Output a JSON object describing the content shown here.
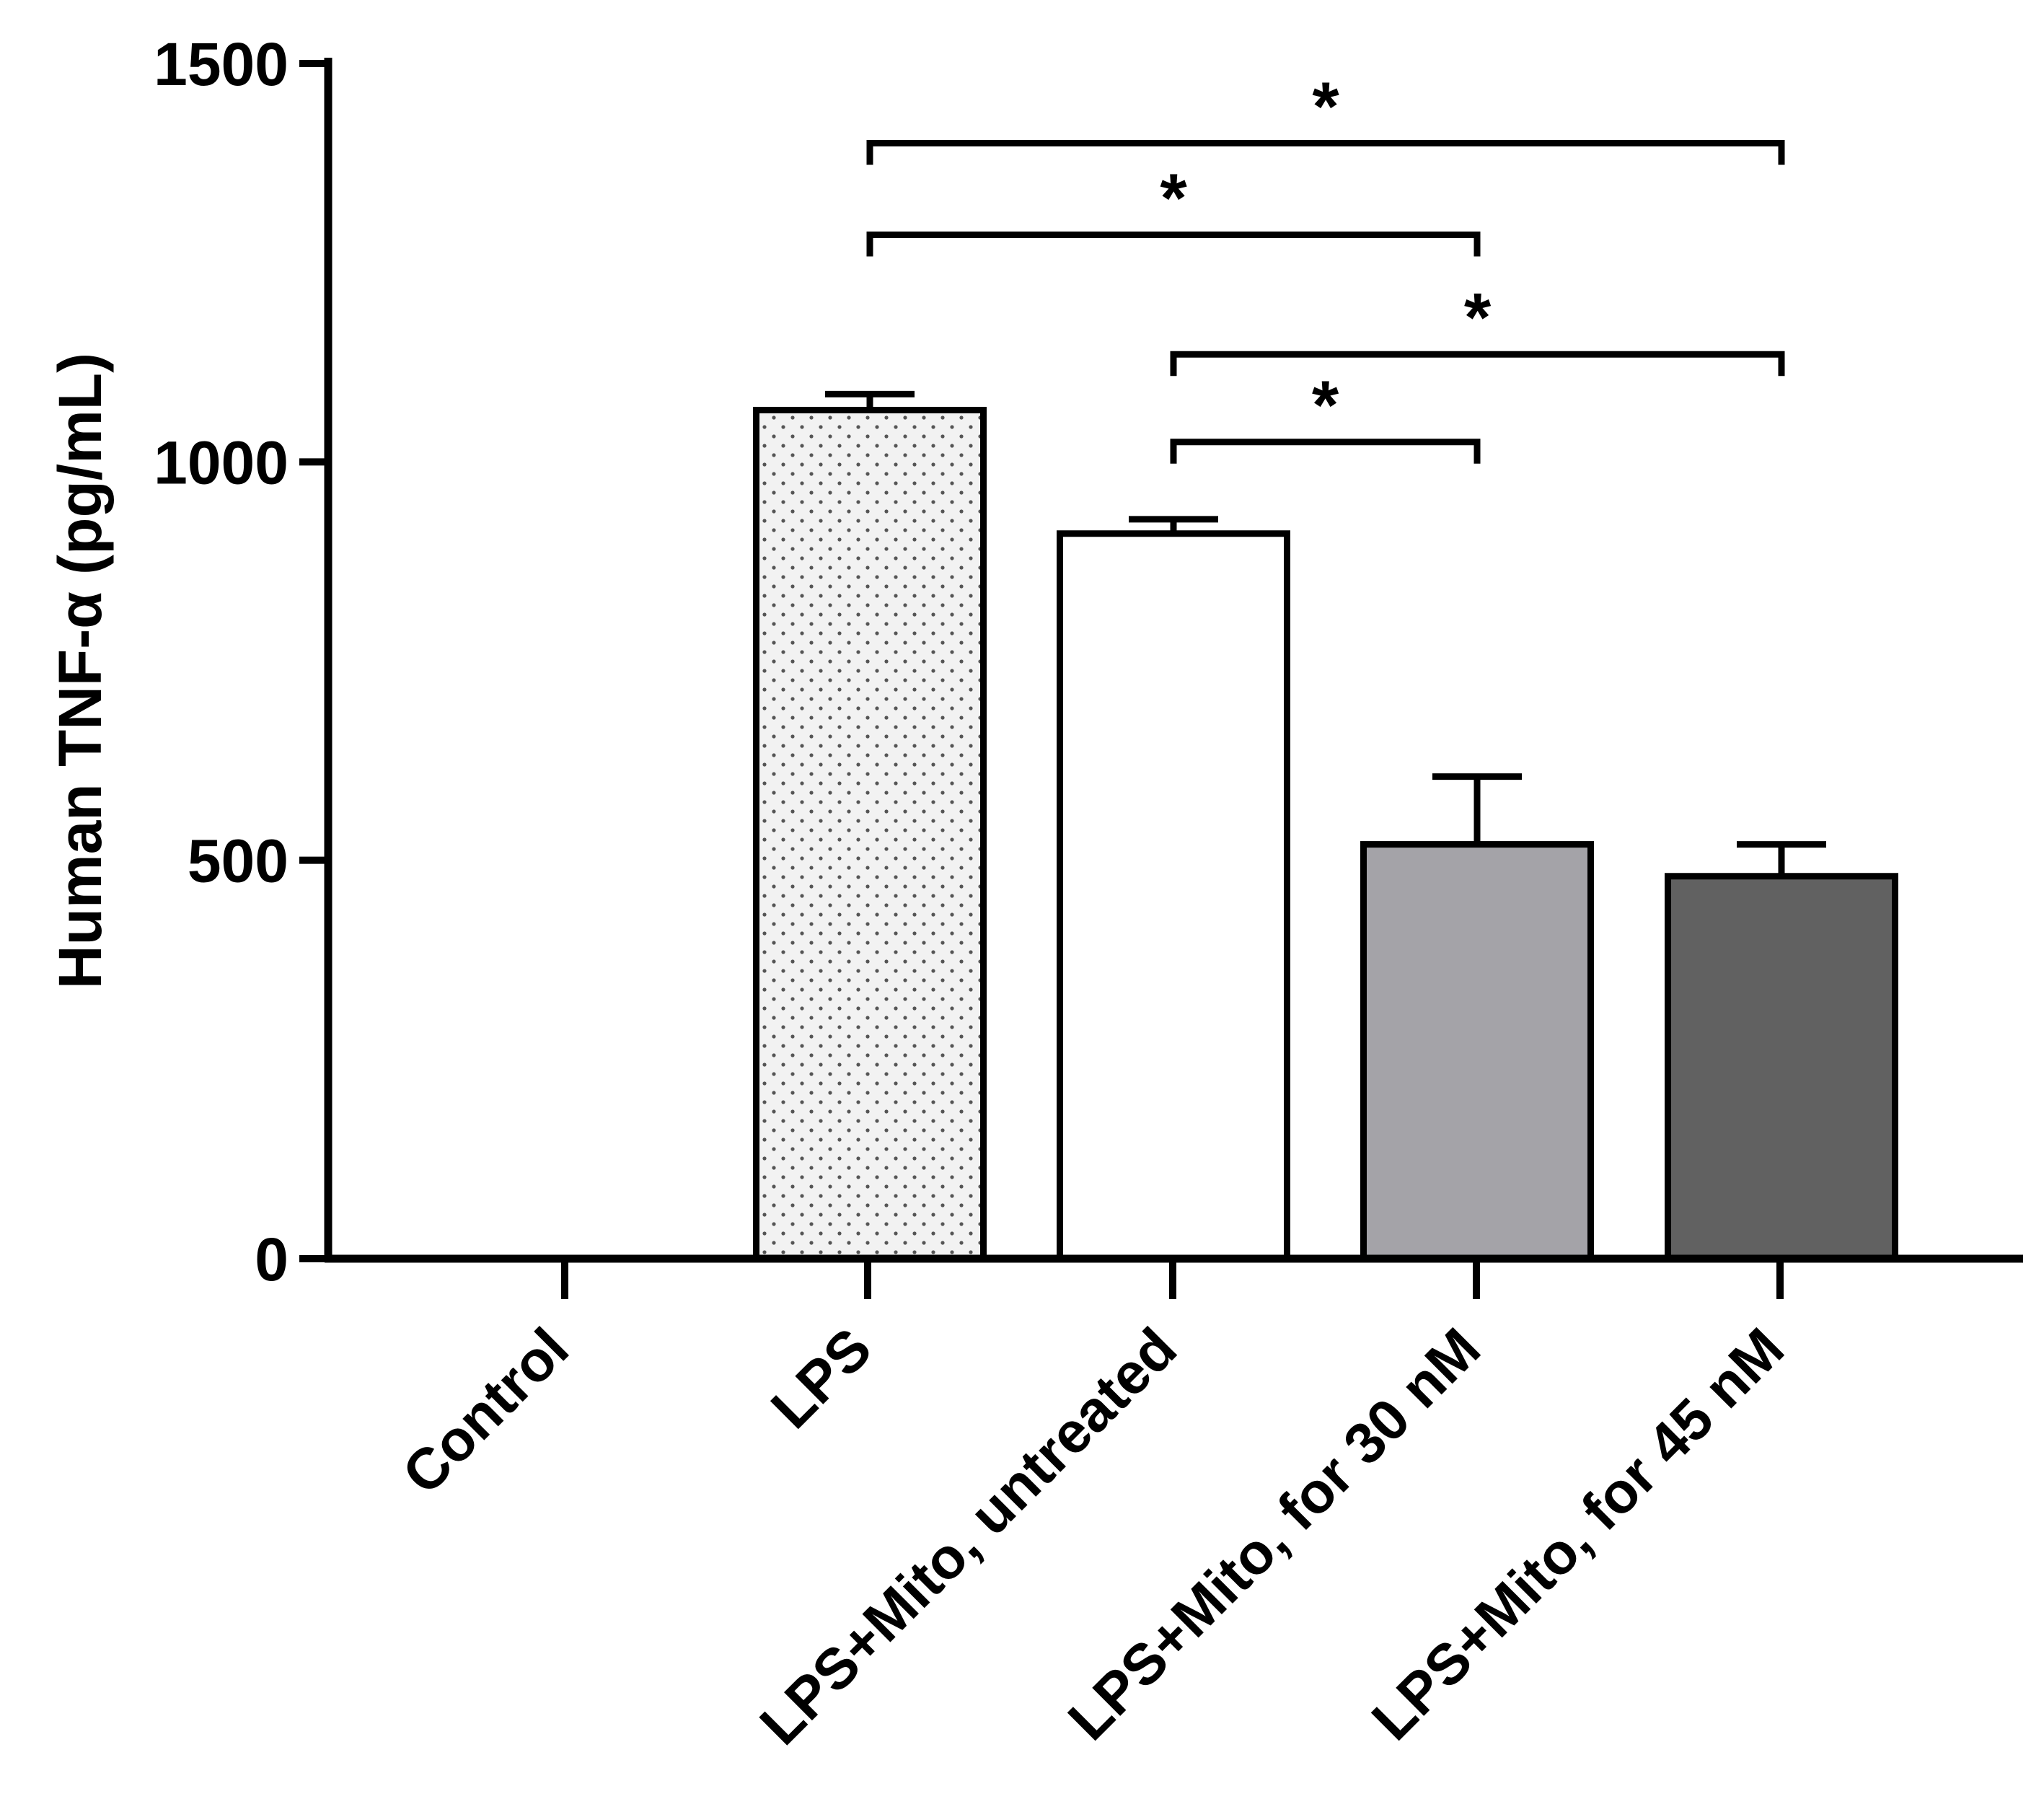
{
  "chart_data": {
    "type": "bar",
    "title": "",
    "xlabel": "",
    "ylabel": "Human TNF-α (pg/mL)",
    "ylim": [
      0,
      1500
    ],
    "yticks": [
      0,
      500,
      1000,
      1500
    ],
    "yticklabels": [
      "0",
      "500",
      "1000",
      "1500"
    ],
    "categories": [
      "Control",
      "LPS",
      "LPS+Mito, untreated",
      "LPS+Mito, for 30 nM",
      "LPS+Mito, for 45 nM"
    ],
    "values": [
      0,
      1065,
      910,
      520,
      480
    ],
    "errors": [
      0,
      20,
      18,
      85,
      40
    ],
    "colors": [
      "#ffffff",
      "#f2f2f2",
      "#ffffff",
      "#a4a3a8",
      "#616161"
    ],
    "patterns": [
      "none",
      "dots",
      "none",
      "none",
      "none"
    ],
    "significance": [
      {
        "from": 1,
        "to": 4,
        "y": 1400,
        "label": "*"
      },
      {
        "from": 1,
        "to": 3,
        "y": 1285,
        "label": "*"
      },
      {
        "from": 2,
        "to": 4,
        "y": 1135,
        "label": "*"
      },
      {
        "from": 2,
        "to": 3,
        "y": 1025,
        "label": "*"
      }
    ]
  }
}
